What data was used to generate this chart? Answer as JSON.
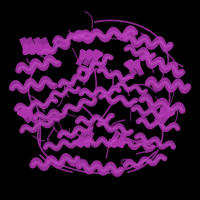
{
  "background_color": "#000000",
  "protein_color": "#AA33AA",
  "protein_color2": "#CC55CC",
  "protein_color3": "#BB44BB",
  "figsize": [
    2.0,
    2.0
  ],
  "dpi": 100,
  "seed": 123
}
